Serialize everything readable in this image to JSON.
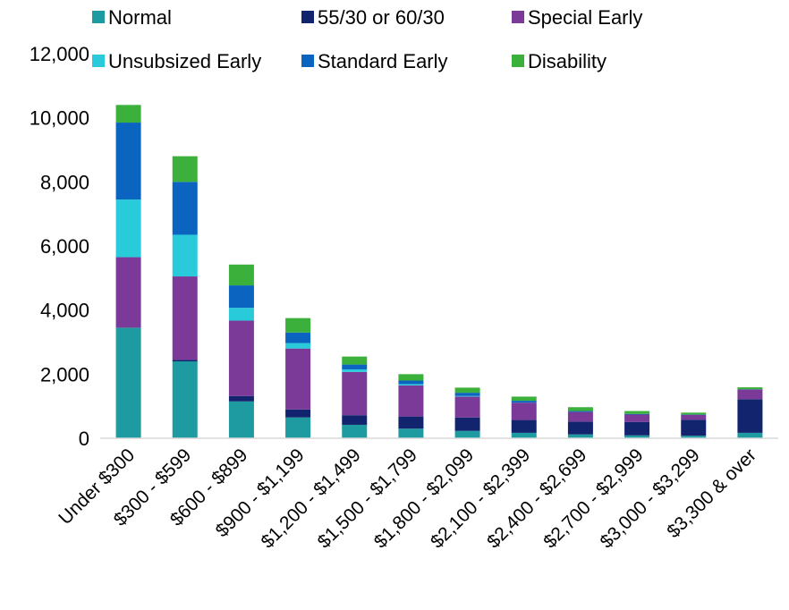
{
  "chart_data": {
    "type": "bar",
    "stacked": true,
    "title": "",
    "xlabel": "",
    "ylabel": "",
    "ylim": [
      0,
      12000
    ],
    "yticks": [
      0,
      2000,
      4000,
      6000,
      8000,
      10000,
      12000
    ],
    "ytick_labels": [
      "0",
      "2,000",
      "4,000",
      "6,000",
      "8,000",
      "10,000",
      "12,000"
    ],
    "grid": false,
    "legend_position": "top",
    "categories": [
      "Under $300",
      "$300 - $599",
      "$600 - $899",
      "$900 - $1,199",
      "$1,200 - $1,499",
      "$1,500 - $1,799",
      "$1,800 - $2,099",
      "$2,100 - $2,399",
      "$2,400 - $2,699",
      "$2,700 - $2,999",
      "$3,000 - $3,299",
      "$3,300 & over"
    ],
    "series": [
      {
        "name": "Normal",
        "color": "#1E9BA0",
        "values": [
          3450,
          2400,
          1150,
          650,
          420,
          300,
          230,
          170,
          120,
          90,
          80,
          170
        ]
      },
      {
        "name": "55/30 or 60/30",
        "color": "#12246E",
        "values": [
          0,
          50,
          170,
          250,
          300,
          380,
          420,
          400,
          400,
          420,
          500,
          1050
        ]
      },
      {
        "name": "Special Early",
        "color": "#7B3A97",
        "values": [
          2200,
          2600,
          2350,
          1900,
          1350,
          970,
          650,
          540,
          300,
          230,
          150,
          300
        ]
      },
      {
        "name": "Unsubsized Early",
        "color": "#29CBDA",
        "values": [
          1800,
          1300,
          400,
          170,
          80,
          40,
          20,
          0,
          0,
          0,
          0,
          0
        ]
      },
      {
        "name": "Standard Early",
        "color": "#0B64C0",
        "values": [
          2400,
          1650,
          700,
          330,
          150,
          110,
          100,
          60,
          30,
          20,
          10,
          10
        ]
      },
      {
        "name": "Disability",
        "color": "#3BB03A",
        "values": [
          550,
          800,
          650,
          450,
          250,
          200,
          160,
          130,
          120,
          90,
          60,
          60
        ]
      }
    ]
  }
}
